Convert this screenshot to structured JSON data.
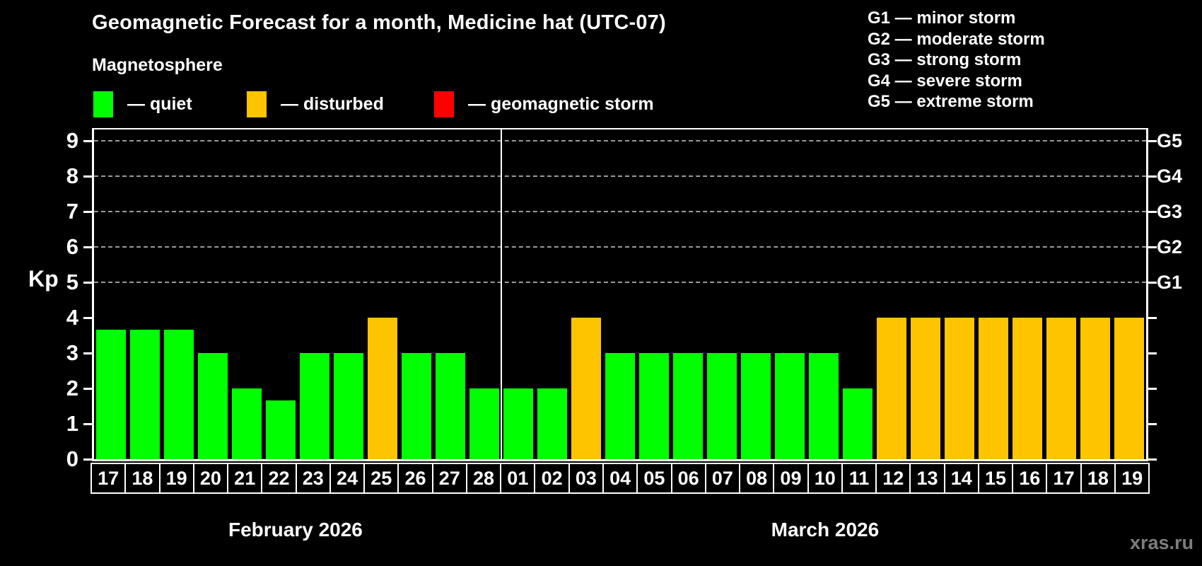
{
  "title": "Geomagnetic Forecast for a month, Medicine hat (UTC-07)",
  "subtitle": "Magnetosphere",
  "legend": {
    "items": [
      {
        "key": "quiet",
        "label": "— quiet",
        "color": "#00ff00"
      },
      {
        "key": "disturbed",
        "label": "— disturbed",
        "color": "#ffc400"
      },
      {
        "key": "storm",
        "label": "— geomagnetic storm",
        "color": "#ff0000"
      }
    ]
  },
  "g_scale": [
    {
      "code": "G1",
      "label": "G1 — minor storm",
      "kp": 5
    },
    {
      "code": "G2",
      "label": "G2 — moderate storm",
      "kp": 6
    },
    {
      "code": "G3",
      "label": "G3 — strong storm",
      "kp": 7
    },
    {
      "code": "G4",
      "label": "G4 — severe storm",
      "kp": 8
    },
    {
      "code": "G5",
      "label": "G5 — extreme storm",
      "kp": 9
    }
  ],
  "axis": {
    "y_label": "Kp",
    "y_ticks": [
      0,
      1,
      2,
      3,
      4,
      5,
      6,
      7,
      8,
      9
    ],
    "y_max": 9.4,
    "gridlines_at": [
      5,
      6,
      7,
      8,
      9
    ]
  },
  "colors": {
    "quiet": "#00ff00",
    "disturbed": "#ffc400",
    "storm": "#ff0000",
    "background": "#000000",
    "gridline": "#9a9a9a"
  },
  "watermark": "xras.ru",
  "chart_data": {
    "type": "bar",
    "title": "Geomagnetic Forecast for a month, Medicine hat (UTC-07)",
    "xlabel": "",
    "ylabel": "Kp",
    "ylim": [
      0,
      9.4
    ],
    "legend_position": "top",
    "grid": "dashed horizontal at Kp 5-9 (G1-G5)",
    "months": [
      {
        "label": "February 2026",
        "days": [
          {
            "day": "17",
            "kp": 3.67,
            "status": "quiet"
          },
          {
            "day": "18",
            "kp": 3.67,
            "status": "quiet"
          },
          {
            "day": "19",
            "kp": 3.67,
            "status": "quiet"
          },
          {
            "day": "20",
            "kp": 3.0,
            "status": "quiet"
          },
          {
            "day": "21",
            "kp": 2.0,
            "status": "quiet"
          },
          {
            "day": "22",
            "kp": 1.67,
            "status": "quiet"
          },
          {
            "day": "23",
            "kp": 3.0,
            "status": "quiet"
          },
          {
            "day": "24",
            "kp": 3.0,
            "status": "quiet"
          },
          {
            "day": "25",
            "kp": 4.0,
            "status": "disturbed"
          },
          {
            "day": "26",
            "kp": 3.0,
            "status": "quiet"
          },
          {
            "day": "27",
            "kp": 3.0,
            "status": "quiet"
          },
          {
            "day": "28",
            "kp": 2.0,
            "status": "quiet"
          }
        ]
      },
      {
        "label": "March 2026",
        "days": [
          {
            "day": "01",
            "kp": 2.0,
            "status": "quiet"
          },
          {
            "day": "02",
            "kp": 2.0,
            "status": "quiet"
          },
          {
            "day": "03",
            "kp": 4.0,
            "status": "disturbed"
          },
          {
            "day": "04",
            "kp": 3.0,
            "status": "quiet"
          },
          {
            "day": "05",
            "kp": 3.0,
            "status": "quiet"
          },
          {
            "day": "06",
            "kp": 3.0,
            "status": "quiet"
          },
          {
            "day": "07",
            "kp": 3.0,
            "status": "quiet"
          },
          {
            "day": "08",
            "kp": 3.0,
            "status": "quiet"
          },
          {
            "day": "09",
            "kp": 3.0,
            "status": "quiet"
          },
          {
            "day": "10",
            "kp": 3.0,
            "status": "quiet"
          },
          {
            "day": "11",
            "kp": 2.0,
            "status": "quiet"
          },
          {
            "day": "12",
            "kp": 4.0,
            "status": "disturbed"
          },
          {
            "day": "13",
            "kp": 4.0,
            "status": "disturbed"
          },
          {
            "day": "14",
            "kp": 4.0,
            "status": "disturbed"
          },
          {
            "day": "15",
            "kp": 4.0,
            "status": "disturbed"
          },
          {
            "day": "16",
            "kp": 4.0,
            "status": "disturbed"
          },
          {
            "day": "17",
            "kp": 4.0,
            "status": "disturbed"
          },
          {
            "day": "18",
            "kp": 4.0,
            "status": "disturbed"
          },
          {
            "day": "19",
            "kp": 4.0,
            "status": "disturbed"
          }
        ]
      }
    ]
  }
}
